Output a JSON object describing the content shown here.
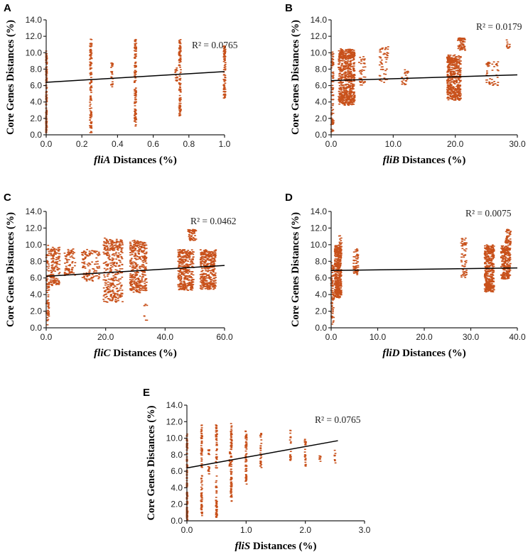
{
  "colors": {
    "points": "#c8511b",
    "trendline": "#000000",
    "axis": "#222222"
  },
  "chart_data": [
    {
      "panel": "A",
      "type": "scatter",
      "gene": "fliA",
      "xlabel_suffix": " Distances (%)",
      "ylabel": "Core Genes Distances (%)",
      "r2": "R² = 0.0765",
      "xlim": [
        0,
        1
      ],
      "ylim": [
        0,
        14
      ],
      "xticks": [
        "0.0",
        "0.2",
        "0.4",
        "0.6",
        "0.8",
        "1.0"
      ],
      "yticks": [
        "0.0",
        "2.0",
        "4.0",
        "6.0",
        "8.0",
        "10.0",
        "12.0",
        "14.0"
      ],
      "trend": [
        [
          0,
          6.4
        ],
        [
          1,
          7.7
        ]
      ],
      "clusters": [
        {
          "x": 0.0,
          "dx": 0.004,
          "ylo": 0.0,
          "yhi": 10.7,
          "n": 140
        },
        {
          "x": 0.25,
          "dx": 0.005,
          "ylo": 0.2,
          "yhi": 11.7,
          "n": 110
        },
        {
          "x": 0.37,
          "dx": 0.006,
          "ylo": 5.6,
          "yhi": 9.1,
          "n": 25
        },
        {
          "x": 0.5,
          "dx": 0.005,
          "ylo": 0.3,
          "yhi": 11.9,
          "n": 110
        },
        {
          "x": 0.73,
          "dx": 0.006,
          "ylo": 6.5,
          "yhi": 8.6,
          "n": 15
        },
        {
          "x": 0.75,
          "dx": 0.005,
          "ylo": 2.2,
          "yhi": 11.8,
          "n": 110
        },
        {
          "x": 1.0,
          "dx": 0.005,
          "ylo": 4.4,
          "yhi": 11.0,
          "n": 90
        }
      ]
    },
    {
      "panel": "B",
      "type": "scatter",
      "gene": "fliB",
      "xlabel_suffix": " Distances (%)",
      "ylabel": "Core Genes Distances (%)",
      "r2": "R² = 0.0179",
      "xlim": [
        0,
        30
      ],
      "ylim": [
        0,
        14
      ],
      "xticks": [
        "0.0",
        "10.0",
        "20.0",
        "30.0"
      ],
      "yticks": [
        "0.0",
        "2.0",
        "4.0",
        "6.0",
        "8.0",
        "10.0",
        "12.0",
        "14.0"
      ],
      "trend": [
        [
          0,
          6.6
        ],
        [
          30,
          7.3
        ]
      ],
      "clusters": [
        {
          "x": 0.2,
          "dx": 0.2,
          "ylo": 0.0,
          "yhi": 10.3,
          "n": 90
        },
        {
          "x": 2.5,
          "dx": 1.3,
          "ylo": 3.5,
          "yhi": 10.5,
          "n": 650
        },
        {
          "x": 5.0,
          "dx": 0.5,
          "ylo": 6.0,
          "yhi": 9.8,
          "n": 40
        },
        {
          "x": 8.5,
          "dx": 0.7,
          "ylo": 6.3,
          "yhi": 10.9,
          "n": 50
        },
        {
          "x": 12.0,
          "dx": 0.6,
          "ylo": 6.0,
          "yhi": 8.0,
          "n": 20
        },
        {
          "x": 19.8,
          "dx": 1.1,
          "ylo": 4.2,
          "yhi": 9.8,
          "n": 450
        },
        {
          "x": 21.0,
          "dx": 0.6,
          "ylo": 10.2,
          "yhi": 11.8,
          "n": 60
        },
        {
          "x": 26.0,
          "dx": 1.0,
          "ylo": 6.0,
          "yhi": 9.0,
          "n": 50
        },
        {
          "x": 28.5,
          "dx": 0.3,
          "ylo": 10.5,
          "yhi": 11.7,
          "n": 10
        }
      ]
    },
    {
      "panel": "C",
      "type": "scatter",
      "gene": "fliC",
      "xlabel_suffix": " Distances (%)",
      "ylabel": "Core Genes Distances (%)",
      "r2": "R² = 0.0462",
      "xlim": [
        0,
        60
      ],
      "ylim": [
        0,
        14
      ],
      "xticks": [
        "0.0",
        "20.0",
        "40.0",
        "60.0"
      ],
      "yticks": [
        "0.0",
        "2.0",
        "4.0",
        "6.0",
        "8.0",
        "10.0",
        "12.0",
        "14.0"
      ],
      "trend": [
        [
          0,
          6.2
        ],
        [
          60,
          7.5
        ]
      ],
      "clusters": [
        {
          "x": 0.5,
          "dx": 0.5,
          "ylo": 0.3,
          "yhi": 10.0,
          "n": 80
        },
        {
          "x": 3.0,
          "dx": 1.6,
          "ylo": 5.0,
          "yhi": 9.8,
          "n": 140
        },
        {
          "x": 8.0,
          "dx": 1.8,
          "ylo": 6.2,
          "yhi": 9.5,
          "n": 80
        },
        {
          "x": 15.0,
          "dx": 3.0,
          "ylo": 5.6,
          "yhi": 9.5,
          "n": 110
        },
        {
          "x": 22.5,
          "dx": 3.2,
          "ylo": 3.0,
          "yhi": 10.8,
          "n": 350
        },
        {
          "x": 31.0,
          "dx": 2.8,
          "ylo": 4.2,
          "yhi": 10.6,
          "n": 350
        },
        {
          "x": 33.5,
          "dx": 0.5,
          "ylo": 0.5,
          "yhi": 3.0,
          "n": 8
        },
        {
          "x": 47.0,
          "dx": 2.6,
          "ylo": 4.5,
          "yhi": 9.5,
          "n": 350
        },
        {
          "x": 49.0,
          "dx": 1.5,
          "ylo": 10.5,
          "yhi": 11.9,
          "n": 50
        },
        {
          "x": 54.5,
          "dx": 2.6,
          "ylo": 4.5,
          "yhi": 9.5,
          "n": 350
        }
      ]
    },
    {
      "panel": "D",
      "type": "scatter",
      "gene": "fliD",
      "xlabel_suffix": " Distances (%)",
      "ylabel": "Core Genes Distances (%)",
      "r2": "R² = 0.0075",
      "xlim": [
        0,
        40
      ],
      "ylim": [
        0,
        14
      ],
      "xticks": [
        "0.0",
        "10.0",
        "20.0",
        "30.0",
        "40.0"
      ],
      "yticks": [
        "0.0",
        "2.0",
        "4.0",
        "6.0",
        "8.0",
        "10.0",
        "12.0",
        "14.0"
      ],
      "trend": [
        [
          0,
          6.9
        ],
        [
          40,
          7.2
        ]
      ],
      "clusters": [
        {
          "x": 0.3,
          "dx": 0.3,
          "ylo": 0.3,
          "yhi": 8.0,
          "n": 80
        },
        {
          "x": 1.5,
          "dx": 0.7,
          "ylo": 3.6,
          "yhi": 10.0,
          "n": 450
        },
        {
          "x": 2.0,
          "dx": 0.3,
          "ylo": 10.0,
          "yhi": 11.1,
          "n": 10
        },
        {
          "x": 5.3,
          "dx": 0.5,
          "ylo": 6.4,
          "yhi": 9.6,
          "n": 60
        },
        {
          "x": 28.5,
          "dx": 0.6,
          "ylo": 6.0,
          "yhi": 11.0,
          "n": 60
        },
        {
          "x": 34.0,
          "dx": 1.0,
          "ylo": 4.3,
          "yhi": 10.0,
          "n": 400
        },
        {
          "x": 37.5,
          "dx": 1.0,
          "ylo": 5.8,
          "yhi": 10.0,
          "n": 250
        },
        {
          "x": 38.0,
          "dx": 0.6,
          "ylo": 10.0,
          "yhi": 11.9,
          "n": 50
        }
      ]
    },
    {
      "panel": "E",
      "type": "scatter",
      "gene": "fliS",
      "xlabel_suffix": " Distances (%)",
      "ylabel": "Core Genes Distances (%)",
      "r2": "R² = 0.0765",
      "xlim": [
        0,
        3
      ],
      "ylim": [
        0,
        14
      ],
      "xticks": [
        "0.0",
        "1.0",
        "2.0",
        "3.0"
      ],
      "yticks": [
        "0.0",
        "2.0",
        "4.0",
        "6.0",
        "8.0",
        "10.0",
        "12.0",
        "14.0"
      ],
      "trend": [
        [
          0,
          6.4
        ],
        [
          2.55,
          9.7
        ]
      ],
      "clusters": [
        {
          "x": 0.0,
          "dx": 0.01,
          "ylo": 0.0,
          "yhi": 10.7,
          "n": 130
        },
        {
          "x": 0.25,
          "dx": 0.01,
          "ylo": 0.2,
          "yhi": 11.7,
          "n": 90
        },
        {
          "x": 0.37,
          "dx": 0.01,
          "ylo": 5.6,
          "yhi": 9.0,
          "n": 20
        },
        {
          "x": 0.5,
          "dx": 0.01,
          "ylo": 0.3,
          "yhi": 11.9,
          "n": 90
        },
        {
          "x": 0.73,
          "dx": 0.01,
          "ylo": 6.5,
          "yhi": 8.5,
          "n": 12
        },
        {
          "x": 0.75,
          "dx": 0.01,
          "ylo": 2.2,
          "yhi": 11.8,
          "n": 90
        },
        {
          "x": 1.0,
          "dx": 0.01,
          "ylo": 4.4,
          "yhi": 11.0,
          "n": 70
        },
        {
          "x": 1.25,
          "dx": 0.01,
          "ylo": 6.2,
          "yhi": 11.0,
          "n": 30
        },
        {
          "x": 1.75,
          "dx": 0.01,
          "ylo": 6.8,
          "yhi": 11.3,
          "n": 20
        },
        {
          "x": 2.0,
          "dx": 0.01,
          "ylo": 6.5,
          "yhi": 9.9,
          "n": 25
        },
        {
          "x": 2.25,
          "dx": 0.01,
          "ylo": 7.0,
          "yhi": 8.0,
          "n": 8
        },
        {
          "x": 2.5,
          "dx": 0.01,
          "ylo": 7.0,
          "yhi": 8.6,
          "n": 8
        }
      ]
    }
  ]
}
